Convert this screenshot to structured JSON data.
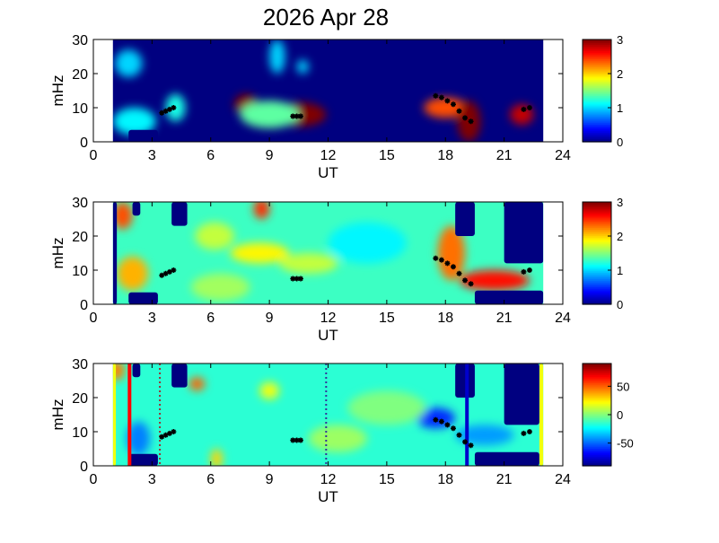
{
  "chart_data": [
    {
      "type": "heatmap",
      "title": "2026 Apr 28",
      "xlabel": "UT",
      "ylabel": "mHz",
      "xlim": [
        0,
        24
      ],
      "ylim": [
        0,
        30
      ],
      "xticks": [
        "0",
        "3",
        "6",
        "9",
        "12",
        "15",
        "18",
        "21",
        "24"
      ],
      "yticks": [
        "0",
        "10",
        "20",
        "30"
      ],
      "colormap": "jet",
      "clim": [
        0,
        3
      ],
      "colorbar_ticks": [
        "0",
        "1",
        "2",
        "3"
      ],
      "data_span_ut": [
        1,
        23
      ],
      "background_value": 0,
      "features": [
        {
          "t": 7.8,
          "f": 11,
          "dt": 0.6,
          "df": 3,
          "v": 3
        },
        {
          "t": 10.6,
          "f": 8,
          "dt": 1.3,
          "df": 3.5,
          "v": 3
        },
        {
          "t": 9.0,
          "f": 8,
          "dt": 1.5,
          "df": 4,
          "v": 1.4
        },
        {
          "t": 18.0,
          "f": 10,
          "dt": 1.1,
          "df": 3,
          "v": 2.4
        },
        {
          "t": 19.2,
          "f": 6,
          "dt": 0.6,
          "df": 6,
          "v": 3
        },
        {
          "t": 21.9,
          "f": 8,
          "dt": 0.6,
          "df": 3,
          "v": 2.8
        },
        {
          "t": 2.1,
          "f": 6,
          "dt": 1.1,
          "df": 4,
          "v": 1.1
        },
        {
          "t": 4.2,
          "f": 10,
          "dt": 0.5,
          "df": 4,
          "v": 1.2
        },
        {
          "t": 1.8,
          "f": 23,
          "dt": 0.7,
          "df": 4,
          "v": 1.0
        },
        {
          "t": 9.4,
          "f": 25,
          "dt": 0.4,
          "df": 5,
          "v": 1.0
        },
        {
          "t": 10.7,
          "f": 22,
          "dt": 0.3,
          "df": 2,
          "v": 1.0
        }
      ],
      "blocks": [
        {
          "t0": 1.8,
          "t1": 3.3,
          "f0": 0,
          "f1": 3.5,
          "v": 0
        }
      ],
      "markers": [
        [
          3.5,
          8.5
        ],
        [
          3.7,
          9
        ],
        [
          3.9,
          9.5
        ],
        [
          4.1,
          10
        ],
        [
          10.2,
          7.5
        ],
        [
          10.4,
          7.5
        ],
        [
          10.6,
          7.5
        ],
        [
          17.5,
          13.5
        ],
        [
          17.8,
          13
        ],
        [
          18.1,
          12
        ],
        [
          18.4,
          11
        ],
        [
          18.7,
          9
        ],
        [
          19.0,
          7
        ],
        [
          19.3,
          6
        ],
        [
          22.0,
          9.5
        ],
        [
          22.3,
          10
        ]
      ]
    },
    {
      "type": "heatmap",
      "xlabel": "UT",
      "ylabel": "mHz",
      "xlim": [
        0,
        24
      ],
      "ylim": [
        0,
        30
      ],
      "xticks": [
        "0",
        "3",
        "6",
        "9",
        "12",
        "15",
        "18",
        "21",
        "24"
      ],
      "yticks": [
        "0",
        "10",
        "20",
        "30"
      ],
      "colormap": "jet",
      "clim": [
        0,
        3
      ],
      "colorbar_ticks": [
        "0",
        "1",
        "2",
        "3"
      ],
      "data_span_ut": [
        1,
        23
      ],
      "background_value": 1.3,
      "features": [
        {
          "t": 2.0,
          "f": 9,
          "dt": 0.8,
          "df": 5,
          "v": 2.1
        },
        {
          "t": 1.5,
          "f": 26,
          "dt": 0.5,
          "df": 4,
          "v": 2.4
        },
        {
          "t": 8.5,
          "f": 15,
          "dt": 1.5,
          "df": 3,
          "v": 1.9
        },
        {
          "t": 6.2,
          "f": 20,
          "dt": 1.0,
          "df": 4,
          "v": 1.7
        },
        {
          "t": 8.6,
          "f": 28,
          "dt": 0.4,
          "df": 3,
          "v": 2.5
        },
        {
          "t": 11,
          "f": 12,
          "dt": 1.5,
          "df": 3,
          "v": 1.7
        },
        {
          "t": 18.3,
          "f": 15,
          "dt": 0.7,
          "df": 8,
          "v": 2.3
        },
        {
          "t": 20.5,
          "f": 7,
          "dt": 1.8,
          "df": 3,
          "v": 2.6
        },
        {
          "t": 14,
          "f": 18,
          "dt": 2,
          "df": 6,
          "v": 1.1
        },
        {
          "t": 6.5,
          "f": 5,
          "dt": 1.5,
          "df": 4,
          "v": 1.6
        }
      ],
      "blocks": [
        {
          "t0": 1,
          "t1": 1.2,
          "f0": 0,
          "f1": 30,
          "v": 0
        },
        {
          "t0": 1.8,
          "t1": 3.3,
          "f0": 0,
          "f1": 3.5,
          "v": 0
        },
        {
          "t0": 2.0,
          "t1": 2.4,
          "f0": 26,
          "f1": 30,
          "v": 0
        },
        {
          "t0": 4.0,
          "t1": 4.8,
          "f0": 23,
          "f1": 30,
          "v": 0
        },
        {
          "t0": 18.5,
          "t1": 19.5,
          "f0": 20,
          "f1": 30,
          "v": 0
        },
        {
          "t0": 21,
          "t1": 23,
          "f0": 12,
          "f1": 30,
          "v": 0
        },
        {
          "t0": 19.5,
          "t1": 23,
          "f0": 0,
          "f1": 4,
          "v": 0
        }
      ],
      "markers": [
        [
          3.5,
          8.5
        ],
        [
          3.7,
          9
        ],
        [
          3.9,
          9.5
        ],
        [
          4.1,
          10
        ],
        [
          10.2,
          7.5
        ],
        [
          10.4,
          7.5
        ],
        [
          10.6,
          7.5
        ],
        [
          17.5,
          13.5
        ],
        [
          17.8,
          13
        ],
        [
          18.1,
          12
        ],
        [
          18.4,
          11
        ],
        [
          18.7,
          9
        ],
        [
          19.0,
          7
        ],
        [
          19.3,
          6
        ],
        [
          22.0,
          9.5
        ],
        [
          22.3,
          10
        ]
      ]
    },
    {
      "type": "heatmap",
      "xlabel": "UT",
      "ylabel": "mHz",
      "xlim": [
        0,
        24
      ],
      "ylim": [
        0,
        30
      ],
      "xticks": [
        "0",
        "3",
        "6",
        "9",
        "12",
        "15",
        "18",
        "21",
        "24"
      ],
      "yticks": [
        "0",
        "10",
        "20",
        "30"
      ],
      "colormap": "jet",
      "clim": [
        -90,
        90
      ],
      "colorbar_ticks": [
        "50",
        "0",
        "-50"
      ],
      "colorbar_tick_values": [
        50,
        0,
        -50
      ],
      "data_span_ut": [
        1,
        23
      ],
      "background_value": -15,
      "features": [
        {
          "t": 1.2,
          "f": 28,
          "dt": 0.4,
          "df": 3,
          "v": 45
        },
        {
          "t": 5.3,
          "f": 24,
          "dt": 0.4,
          "df": 2,
          "v": 50
        },
        {
          "t": 6.3,
          "f": 2,
          "dt": 0.3,
          "df": 3,
          "v": 30
        },
        {
          "t": 9.0,
          "f": 22,
          "dt": 0.5,
          "df": 2.5,
          "v": 20
        },
        {
          "t": 17.5,
          "f": 14,
          "dt": 1.0,
          "df": 3,
          "v": -60
        },
        {
          "t": 2.3,
          "f": 8,
          "dt": 0.6,
          "df": 5,
          "v": -45
        },
        {
          "t": 20,
          "f": 9,
          "dt": 1.5,
          "df": 3,
          "v": -40
        },
        {
          "t": 15,
          "f": 17,
          "dt": 2,
          "df": 5,
          "v": 0
        },
        {
          "t": 12.5,
          "f": 8,
          "dt": 1.5,
          "df": 4,
          "v": 5
        }
      ],
      "blocks": [
        {
          "t0": 1,
          "t1": 1.15,
          "f0": 0,
          "f1": 30,
          "v": 20
        },
        {
          "t0": 22.8,
          "t1": 23,
          "f0": 0,
          "f1": 30,
          "v": 20
        },
        {
          "t0": 1.8,
          "t1": 3.3,
          "f0": 0,
          "f1": 3.5,
          "v": -90
        },
        {
          "t0": 2.0,
          "t1": 2.4,
          "f0": 26,
          "f1": 30,
          "v": -90
        },
        {
          "t0": 4.0,
          "t1": 4.8,
          "f0": 23,
          "f1": 30,
          "v": -90
        },
        {
          "t0": 18.5,
          "t1": 19.5,
          "f0": 20,
          "f1": 30,
          "v": -90
        },
        {
          "t0": 21,
          "t1": 22.8,
          "f0": 12,
          "f1": 30,
          "v": -90
        },
        {
          "t0": 19.5,
          "t1": 22.8,
          "f0": 0,
          "f1": 4,
          "v": -90
        }
      ],
      "vlines": [
        {
          "t": 1.85,
          "color": "#ff0000",
          "style": "solid"
        },
        {
          "t": 19.1,
          "color": "#0000cc",
          "style": "solid"
        },
        {
          "t": 3.4,
          "color": "#993333",
          "style": "dotted"
        },
        {
          "t": 11.9,
          "color": "#333399",
          "style": "dotted"
        }
      ],
      "markers": [
        [
          3.5,
          8.5
        ],
        [
          3.7,
          9
        ],
        [
          3.9,
          9.5
        ],
        [
          4.1,
          10
        ],
        [
          10.2,
          7.5
        ],
        [
          10.4,
          7.5
        ],
        [
          10.6,
          7.5
        ],
        [
          17.5,
          13.5
        ],
        [
          17.8,
          13
        ],
        [
          18.1,
          12
        ],
        [
          18.4,
          11
        ],
        [
          18.7,
          9
        ],
        [
          19.0,
          7
        ],
        [
          19.3,
          6
        ],
        [
          22.0,
          9.5
        ],
        [
          22.3,
          10
        ]
      ]
    }
  ]
}
